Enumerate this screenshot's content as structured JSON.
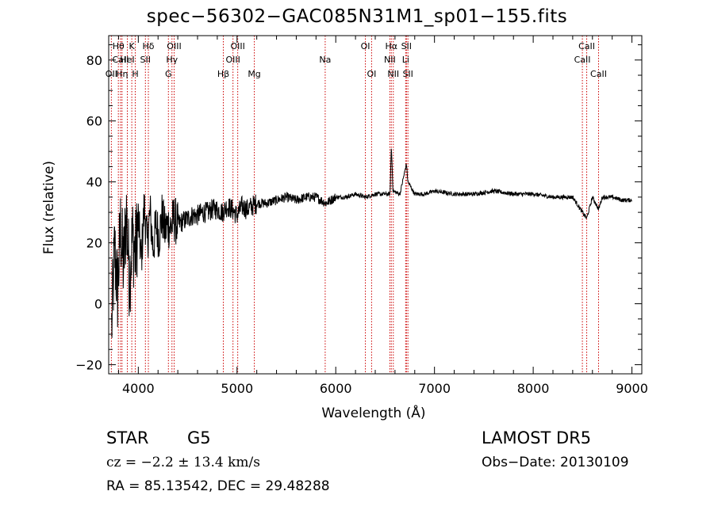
{
  "chart_data": {
    "type": "line",
    "title": "spec−56302−GAC085N31M1_sp01−155.fits",
    "xlabel": "Wavelength (Å)",
    "ylabel": "Flux (relative)",
    "xlim": [
      3700,
      9100
    ],
    "ylim": [
      -23,
      88
    ],
    "xticks": [
      4000,
      5000,
      6000,
      7000,
      8000,
      9000
    ],
    "xticklabels": [
      "4000",
      "5000",
      "6000",
      "7000",
      "8000",
      "9000"
    ],
    "yticks": [
      -20,
      0,
      20,
      40,
      60,
      80
    ],
    "yticklabels": [
      "−20",
      "0",
      "20",
      "40",
      "60",
      "80"
    ],
    "grid": false,
    "line_color": "#000000",
    "marker_color": "#cc0000",
    "series": [
      {
        "x": [
          3730,
          3760,
          3790,
          3820,
          3850,
          3880,
          3910,
          3940,
          3970,
          4000,
          4030,
          4060,
          4090,
          4120,
          4150,
          4180,
          4210,
          4240,
          4270,
          4300,
          4330,
          4360,
          4400,
          4450,
          4500,
          4550,
          4600,
          4650,
          4700,
          4750,
          4800,
          4850,
          4900,
          4950,
          5000,
          5050,
          5100,
          5150,
          5200,
          5300,
          5400,
          5500,
          5600,
          5700,
          5800,
          5900,
          6000,
          6100,
          6200,
          6300,
          6400,
          6500,
          6550,
          6563,
          6580,
          6650,
          6716,
          6731,
          6800,
          6900,
          7000,
          7200,
          7400,
          7600,
          7800,
          8000,
          8200,
          8400,
          8498,
          8542,
          8600,
          8662,
          8700,
          8800,
          8900,
          9000
        ],
        "y": [
          -8,
          18,
          4,
          25,
          12,
          30,
          8,
          22,
          16,
          28,
          14,
          32,
          20,
          30,
          18,
          26,
          22,
          29,
          24,
          26,
          25,
          28,
          26,
          27,
          28,
          29,
          29,
          30,
          30,
          31,
          31,
          30,
          32,
          31,
          29,
          32,
          31,
          32,
          33,
          33,
          34,
          35,
          34,
          35,
          35,
          33,
          35,
          35,
          36,
          35,
          36,
          36,
          36,
          52,
          37,
          36,
          46,
          40,
          36,
          36,
          37,
          36,
          36,
          37,
          36,
          36,
          35,
          35,
          30,
          28,
          35,
          31,
          35,
          35,
          34,
          34
        ]
      }
    ],
    "lines": [
      {
        "label": "OII",
        "x": 3727,
        "row": 3
      },
      {
        "label": "Hθ",
        "x": 3798,
        "row": 1
      },
      {
        "label": "CaII",
        "x": 3820,
        "row": 2
      },
      {
        "label": "Hη",
        "x": 3835,
        "row": 3
      },
      {
        "label": "HeI",
        "x": 3889,
        "row": 2
      },
      {
        "label": "K",
        "x": 3934,
        "row": 1
      },
      {
        "label": "H",
        "x": 3969,
        "row": 3
      },
      {
        "label": "Hδ",
        "x": 4102,
        "row": 1
      },
      {
        "label": "SII",
        "x": 4072,
        "row": 2
      },
      {
        "label": "OIII",
        "x": 4363,
        "row": 1
      },
      {
        "label": "Hγ",
        "x": 4341,
        "row": 2
      },
      {
        "label": "G",
        "x": 4305,
        "row": 3
      },
      {
        "label": "Hβ",
        "x": 4861,
        "row": 3
      },
      {
        "label": "OIII",
        "x": 5007,
        "row": 1
      },
      {
        "label": "OIII",
        "x": 4959,
        "row": 2
      },
      {
        "label": "Mg",
        "x": 5175,
        "row": 3
      },
      {
        "label": "Na",
        "x": 5893,
        "row": 2
      },
      {
        "label": "OI",
        "x": 6300,
        "row": 1
      },
      {
        "label": "OI",
        "x": 6363,
        "row": 3
      },
      {
        "label": "Hα",
        "x": 6563,
        "row": 1
      },
      {
        "label": "NII",
        "x": 6548,
        "row": 2
      },
      {
        "label": "NII",
        "x": 6583,
        "row": 3
      },
      {
        "label": "SII",
        "x": 6716,
        "row": 1
      },
      {
        "label": "Li",
        "x": 6708,
        "row": 2
      },
      {
        "label": "SII",
        "x": 6731,
        "row": 3
      },
      {
        "label": "CaII",
        "x": 8542,
        "row": 1
      },
      {
        "label": "CaII",
        "x": 8498,
        "row": 2
      },
      {
        "label": "CaII",
        "x": 8662,
        "row": 3
      }
    ]
  },
  "info": {
    "class_label": "STAR",
    "subclass": "G5",
    "survey": "LAMOST DR5",
    "cz_text": "cz = −2.2 ± 13.4 km/s",
    "obs_date": "Obs−Date: 20130109",
    "coords": "RA =  85.13542, DEC =  29.48288"
  }
}
